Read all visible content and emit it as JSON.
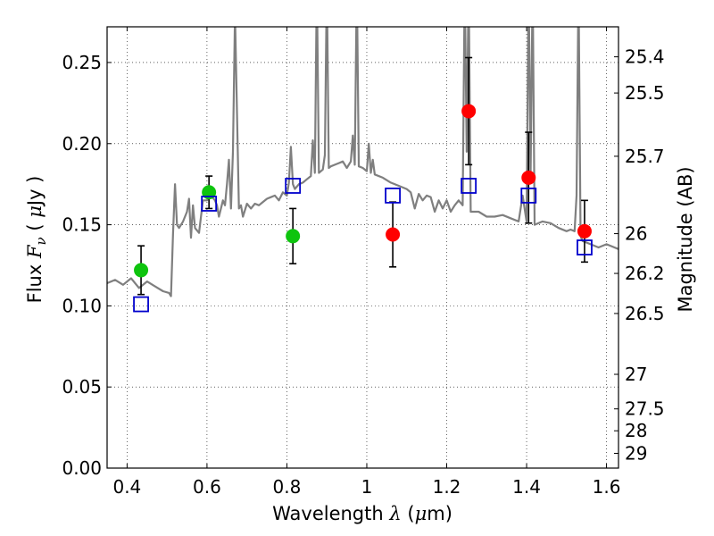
{
  "chart_data": {
    "type": "scatter",
    "title": "",
    "xlabel": "Wavelength",
    "xlabel_symbol": "λ",
    "xlabel_unit_open": "(",
    "xlabel_unit_mu": "μ",
    "xlabel_unit_rest": "m)",
    "ylabel_prefix": "Flux",
    "ylabel_symbol": "F",
    "ylabel_sub": "ν",
    "ylabel_open": "(",
    "ylabel_mu": "μ",
    "ylabel_unit": "Jy",
    "ylabel_close": ")",
    "y2label": "Magnitude (AB)",
    "xlim": [
      0.35,
      1.63
    ],
    "ylim": [
      0.0,
      0.272
    ],
    "grid": true,
    "x_ticks": [
      {
        "value": 0.4,
        "label": "0.4"
      },
      {
        "value": 0.6,
        "label": "0.6"
      },
      {
        "value": 0.8,
        "label": "0.8"
      },
      {
        "value": 1.0,
        "label": "1"
      },
      {
        "value": 1.2,
        "label": "1.2"
      },
      {
        "value": 1.4,
        "label": "1.4"
      },
      {
        "value": 1.6,
        "label": "1.6"
      }
    ],
    "y_ticks": [
      {
        "value": 0.0,
        "label": "0.00"
      },
      {
        "value": 0.05,
        "label": "0.05"
      },
      {
        "value": 0.1,
        "label": "0.10"
      },
      {
        "value": 0.15,
        "label": "0.15"
      },
      {
        "value": 0.2,
        "label": "0.20"
      },
      {
        "value": 0.25,
        "label": "0.25"
      }
    ],
    "right_ticks": [
      {
        "flux": 0.2535,
        "label": "25.4"
      },
      {
        "flux": 0.2312,
        "label": "25.5"
      },
      {
        "flux": 0.1922,
        "label": "25.7"
      },
      {
        "flux": 0.1445,
        "label": "26"
      },
      {
        "flux": 0.12,
        "label": "26.2"
      },
      {
        "flux": 0.0953,
        "label": "26.5"
      },
      {
        "flux": 0.0578,
        "label": "27"
      },
      {
        "flux": 0.0365,
        "label": "27.5"
      },
      {
        "flux": 0.023,
        "label": "28"
      },
      {
        "flux": 0.0091,
        "label": "29"
      }
    ],
    "series": [
      {
        "name": "model spectrum",
        "kind": "line",
        "color": "#7f7f7f",
        "x": [
          0.35,
          0.37,
          0.39,
          0.41,
          0.43,
          0.45,
          0.47,
          0.49,
          0.505,
          0.51,
          0.515,
          0.52,
          0.525,
          0.53,
          0.54,
          0.55,
          0.555,
          0.56,
          0.565,
          0.57,
          0.58,
          0.59,
          0.6,
          0.61,
          0.62,
          0.625,
          0.63,
          0.64,
          0.645,
          0.65,
          0.655,
          0.66,
          0.665,
          0.67,
          0.68,
          0.685,
          0.69,
          0.7,
          0.71,
          0.72,
          0.73,
          0.74,
          0.75,
          0.76,
          0.77,
          0.78,
          0.79,
          0.8,
          0.805,
          0.81,
          0.815,
          0.82,
          0.83,
          0.84,
          0.85,
          0.86,
          0.865,
          0.87,
          0.875,
          0.88,
          0.89,
          0.895,
          0.9,
          0.905,
          0.91,
          0.92,
          0.93,
          0.94,
          0.95,
          0.96,
          0.965,
          0.97,
          0.975,
          0.98,
          0.99,
          1.0,
          1.005,
          1.01,
          1.015,
          1.02,
          1.04,
          1.06,
          1.08,
          1.1,
          1.11,
          1.12,
          1.13,
          1.14,
          1.15,
          1.16,
          1.17,
          1.18,
          1.19,
          1.2,
          1.21,
          1.22,
          1.23,
          1.24,
          1.245,
          1.25,
          1.255,
          1.26,
          1.28,
          1.3,
          1.32,
          1.34,
          1.36,
          1.38,
          1.39,
          1.4,
          1.405,
          1.41,
          1.415,
          1.42,
          1.44,
          1.46,
          1.48,
          1.5,
          1.51,
          1.52,
          1.525,
          1.53,
          1.535,
          1.54,
          1.56,
          1.58,
          1.6,
          1.63
        ],
        "y": [
          0.114,
          0.116,
          0.113,
          0.117,
          0.111,
          0.115,
          0.112,
          0.109,
          0.108,
          0.106,
          0.145,
          0.175,
          0.15,
          0.148,
          0.152,
          0.158,
          0.166,
          0.142,
          0.162,
          0.148,
          0.145,
          0.165,
          0.165,
          0.168,
          0.165,
          0.162,
          0.155,
          0.165,
          0.162,
          0.175,
          0.19,
          0.16,
          0.195,
          0.28,
          0.16,
          0.162,
          0.155,
          0.163,
          0.16,
          0.163,
          0.162,
          0.164,
          0.166,
          0.167,
          0.168,
          0.165,
          0.17,
          0.168,
          0.176,
          0.198,
          0.175,
          0.172,
          0.175,
          0.176,
          0.178,
          0.18,
          0.202,
          0.182,
          0.3,
          0.182,
          0.184,
          0.193,
          0.3,
          0.185,
          0.186,
          0.187,
          0.188,
          0.189,
          0.185,
          0.189,
          0.205,
          0.187,
          0.3,
          0.186,
          0.185,
          0.183,
          0.2,
          0.182,
          0.19,
          0.181,
          0.179,
          0.176,
          0.174,
          0.172,
          0.17,
          0.16,
          0.169,
          0.165,
          0.168,
          0.167,
          0.158,
          0.165,
          0.16,
          0.165,
          0.158,
          0.162,
          0.165,
          0.162,
          0.3,
          0.195,
          0.3,
          0.158,
          0.158,
          0.155,
          0.155,
          0.156,
          0.154,
          0.152,
          0.168,
          0.152,
          0.3,
          0.18,
          0.3,
          0.15,
          0.152,
          0.151,
          0.148,
          0.146,
          0.147,
          0.146,
          0.168,
          0.3,
          0.143,
          0.14,
          0.138,
          0.136,
          0.138,
          0.135
        ]
      },
      {
        "name": "green photometry",
        "kind": "points",
        "marker": "circle",
        "color": "#0ec40e",
        "points": [
          {
            "x": 0.435,
            "y": 0.122,
            "err": 0.015
          },
          {
            "x": 0.605,
            "y": 0.17,
            "err": 0.01
          },
          {
            "x": 0.815,
            "y": 0.143,
            "err": 0.017
          }
        ]
      },
      {
        "name": "red photometry",
        "kind": "points",
        "marker": "circle",
        "color": "#ff0000",
        "points": [
          {
            "x": 1.065,
            "y": 0.144,
            "err": 0.02
          },
          {
            "x": 1.255,
            "y": 0.22,
            "err": 0.033
          },
          {
            "x": 1.405,
            "y": 0.179,
            "err": 0.028
          },
          {
            "x": 1.545,
            "y": 0.146,
            "err": 0.019
          }
        ]
      },
      {
        "name": "model synthetic photometry",
        "kind": "points",
        "marker": "open-square",
        "color": "#0000cc",
        "points": [
          {
            "x": 0.435,
            "y": 0.101
          },
          {
            "x": 0.605,
            "y": 0.163
          },
          {
            "x": 0.815,
            "y": 0.174
          },
          {
            "x": 1.065,
            "y": 0.168
          },
          {
            "x": 1.255,
            "y": 0.174
          },
          {
            "x": 1.405,
            "y": 0.168
          },
          {
            "x": 1.545,
            "y": 0.136
          }
        ]
      }
    ]
  }
}
